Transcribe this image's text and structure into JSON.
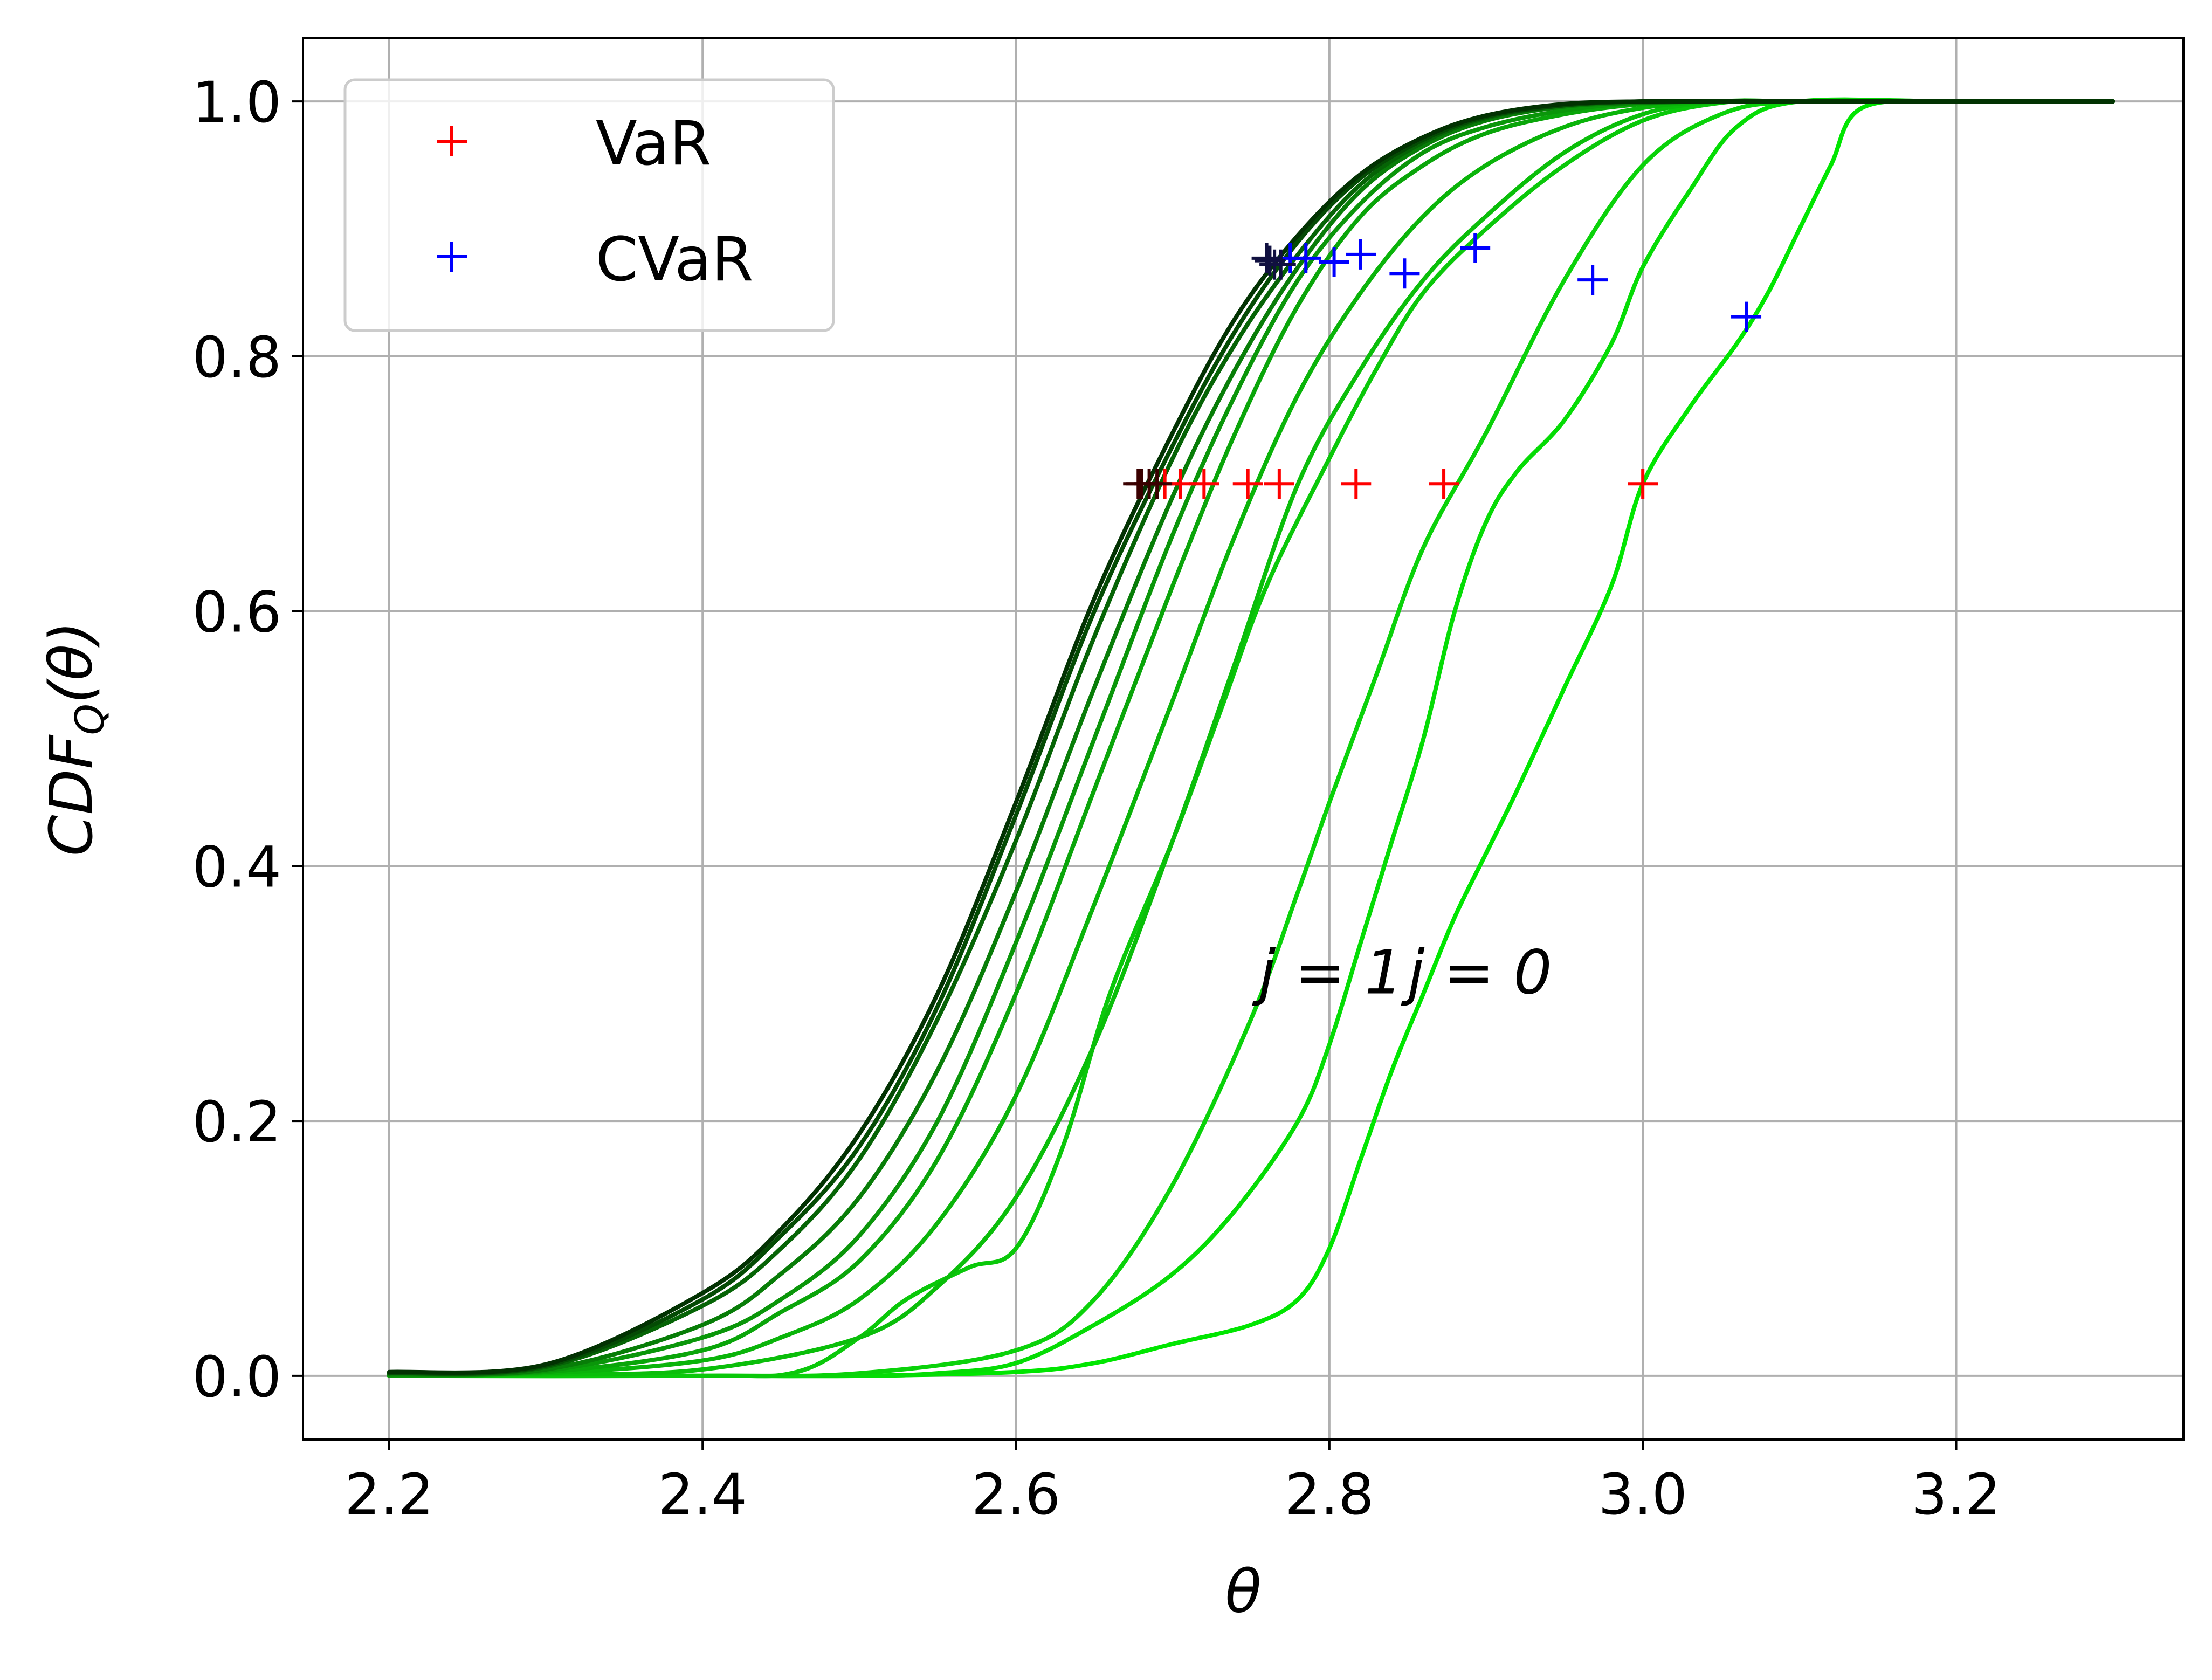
{
  "chart_data": {
    "type": "line",
    "xlabel": "θ",
    "ylabel": "CDF_Q(θ)",
    "ylabel_parts": [
      "CDF",
      "Q",
      "(θ)"
    ],
    "xlim": [
      2.145,
      3.345
    ],
    "ylim": [
      -0.05,
      1.05
    ],
    "x_ticks": [
      2.2,
      2.4,
      2.6,
      2.8,
      3.0,
      3.2
    ],
    "x_tick_labels": [
      "2.2",
      "2.4",
      "2.6",
      "2.8",
      "3.0",
      "3.2"
    ],
    "y_ticks": [
      0.0,
      0.2,
      0.4,
      0.6,
      0.8,
      1.0
    ],
    "y_tick_labels": [
      "0.0",
      "0.2",
      "0.4",
      "0.6",
      "0.8",
      "1.0"
    ],
    "grid": true,
    "legend_position": "top-left",
    "legend": [
      {
        "label": "VaR",
        "marker": "+",
        "color": "#ff0000"
      },
      {
        "label": "CVaR",
        "marker": "+",
        "color": "#0000ff"
      }
    ],
    "annotations": [
      {
        "text": "j = 1",
        "x": 2.755,
        "y": 0.3
      },
      {
        "text": "j = 0",
        "x": 2.85,
        "y": 0.3
      }
    ],
    "series": [
      {
        "color": "#00e600",
        "x": [
          2.2,
          2.4,
          2.5,
          2.6,
          2.65,
          2.7,
          2.75,
          2.78,
          2.8,
          2.82,
          2.84,
          2.86,
          2.88,
          2.9,
          2.92,
          2.95,
          2.98,
          3.0,
          3.03,
          3.06,
          3.08,
          3.1,
          3.12,
          3.14,
          3.2,
          3.3
        ],
        "y": [
          0,
          0,
          0,
          0.003,
          0.01,
          0.025,
          0.04,
          0.06,
          0.1,
          0.17,
          0.24,
          0.3,
          0.36,
          0.41,
          0.46,
          0.54,
          0.62,
          0.7,
          0.76,
          0.81,
          0.85,
          0.9,
          0.95,
          0.995,
          1,
          1
        ]
      },
      {
        "color": "#05dc05",
        "x": [
          2.2,
          2.4,
          2.5,
          2.55,
          2.6,
          2.65,
          2.7,
          2.74,
          2.78,
          2.8,
          2.82,
          2.84,
          2.86,
          2.88,
          2.9,
          2.92,
          2.95,
          2.98,
          3.0,
          3.03,
          3.06,
          3.1,
          3.2,
          3.3
        ],
        "y": [
          0,
          0,
          0,
          0.002,
          0.01,
          0.04,
          0.08,
          0.13,
          0.2,
          0.26,
          0.34,
          0.42,
          0.5,
          0.6,
          0.67,
          0.71,
          0.75,
          0.81,
          0.87,
          0.93,
          0.98,
          1.0,
          1,
          1
        ]
      },
      {
        "color": "#0ad20a",
        "x": [
          2.2,
          2.4,
          2.5,
          2.6,
          2.65,
          2.7,
          2.75,
          2.78,
          2.8,
          2.83,
          2.86,
          2.9,
          2.95,
          3.0,
          3.05,
          3.1,
          3.2,
          3.3
        ],
        "y": [
          0,
          0,
          0.002,
          0.02,
          0.06,
          0.15,
          0.28,
          0.38,
          0.45,
          0.55,
          0.65,
          0.74,
          0.86,
          0.95,
          0.99,
          1.0,
          1,
          1
        ]
      },
      {
        "color": "#0ac80a",
        "x": [
          2.2,
          2.4,
          2.46,
          2.5,
          2.53,
          2.57,
          2.6,
          2.63,
          2.66,
          2.7,
          2.73,
          2.76,
          2.8,
          2.83,
          2.86,
          2.9,
          2.95,
          3.0,
          3.05,
          3.1,
          3.2,
          3.3
        ],
        "y": [
          0,
          0,
          0.003,
          0.03,
          0.06,
          0.085,
          0.1,
          0.18,
          0.3,
          0.42,
          0.52,
          0.62,
          0.72,
          0.79,
          0.85,
          0.9,
          0.95,
          0.985,
          0.999,
          1.0,
          1,
          1
        ]
      },
      {
        "color": "#0abe0a",
        "x": [
          2.2,
          2.3,
          2.4,
          2.5,
          2.55,
          2.6,
          2.65,
          2.7,
          2.74,
          2.78,
          2.82,
          2.86,
          2.9,
          2.95,
          3.0,
          3.05,
          3.1,
          3.2,
          3.3
        ],
        "y": [
          0,
          0.001,
          0.005,
          0.03,
          0.07,
          0.14,
          0.26,
          0.42,
          0.56,
          0.7,
          0.79,
          0.86,
          0.91,
          0.96,
          0.99,
          1.0,
          1.0,
          1,
          1
        ]
      },
      {
        "color": "#0ab40a",
        "x": [
          2.2,
          2.3,
          2.4,
          2.45,
          2.5,
          2.55,
          2.6,
          2.65,
          2.7,
          2.74,
          2.78,
          2.82,
          2.86,
          2.9,
          2.95,
          3.0,
          3.05,
          3.1,
          3.2,
          3.3
        ],
        "y": [
          0,
          0.002,
          0.012,
          0.03,
          0.06,
          0.12,
          0.22,
          0.37,
          0.53,
          0.66,
          0.77,
          0.85,
          0.91,
          0.95,
          0.98,
          0.995,
          1.0,
          1.0,
          1,
          1
        ]
      },
      {
        "color": "#0aa50a",
        "x": [
          2.2,
          2.3,
          2.4,
          2.45,
          2.5,
          2.55,
          2.6,
          2.65,
          2.7,
          2.74,
          2.78,
          2.82,
          2.86,
          2.9,
          2.95,
          3.0,
          3.05,
          3.1,
          3.2,
          3.3
        ],
        "y": [
          0,
          0.003,
          0.02,
          0.05,
          0.09,
          0.17,
          0.3,
          0.46,
          0.62,
          0.74,
          0.84,
          0.91,
          0.95,
          0.975,
          0.99,
          0.998,
          1.0,
          1.0,
          1,
          1
        ]
      },
      {
        "color": "#0a960a",
        "x": [
          2.2,
          2.3,
          2.4,
          2.45,
          2.5,
          2.55,
          2.6,
          2.65,
          2.7,
          2.74,
          2.78,
          2.82,
          2.86,
          2.9,
          2.95,
          3.0,
          3.05,
          3.1,
          3.2,
          3.3
        ],
        "y": [
          0,
          0.004,
          0.03,
          0.06,
          0.11,
          0.2,
          0.34,
          0.5,
          0.66,
          0.77,
          0.86,
          0.92,
          0.96,
          0.98,
          0.993,
          0.999,
          1.0,
          1.0,
          1,
          1
        ]
      },
      {
        "color": "#087d08",
        "x": [
          2.2,
          2.3,
          2.4,
          2.45,
          2.5,
          2.55,
          2.6,
          2.65,
          2.7,
          2.74,
          2.78,
          2.82,
          2.86,
          2.9,
          2.95,
          3.0,
          3.05,
          3.1,
          3.2,
          3.3
        ],
        "y": [
          0.001,
          0.005,
          0.04,
          0.08,
          0.14,
          0.24,
          0.38,
          0.54,
          0.69,
          0.79,
          0.87,
          0.93,
          0.965,
          0.985,
          0.996,
          0.999,
          1.0,
          1.0,
          1,
          1
        ]
      },
      {
        "color": "#066406",
        "x": [
          2.2,
          2.3,
          2.4,
          2.45,
          2.5,
          2.55,
          2.6,
          2.65,
          2.7,
          2.74,
          2.78,
          2.82,
          2.86,
          2.9,
          2.95,
          3.0,
          3.05,
          3.1,
          3.2,
          3.3
        ],
        "y": [
          0.002,
          0.007,
          0.055,
          0.1,
          0.17,
          0.28,
          0.42,
          0.58,
          0.72,
          0.81,
          0.88,
          0.935,
          0.968,
          0.987,
          0.997,
          1.0,
          1.0,
          1.0,
          1,
          1
        ]
      },
      {
        "color": "#044b04",
        "x": [
          2.2,
          2.3,
          2.4,
          2.45,
          2.5,
          2.55,
          2.6,
          2.65,
          2.7,
          2.74,
          2.78,
          2.82,
          2.86,
          2.9,
          2.95,
          3.0,
          3.05,
          3.1,
          3.2,
          3.3
        ],
        "y": [
          0.002,
          0.008,
          0.06,
          0.11,
          0.18,
          0.29,
          0.44,
          0.6,
          0.73,
          0.82,
          0.89,
          0.94,
          0.97,
          0.988,
          0.997,
          1.0,
          1.0,
          1.0,
          1,
          1
        ]
      },
      {
        "color": "#023202",
        "x": [
          2.2,
          2.3,
          2.4,
          2.45,
          2.5,
          2.55,
          2.6,
          2.65,
          2.7,
          2.74,
          2.78,
          2.82,
          2.86,
          2.9,
          2.95,
          3.0,
          3.05,
          3.1,
          3.2,
          3.3
        ],
        "y": [
          0.003,
          0.009,
          0.065,
          0.115,
          0.19,
          0.3,
          0.45,
          0.61,
          0.74,
          0.83,
          0.895,
          0.943,
          0.972,
          0.989,
          0.998,
          1.0,
          1.0,
          1.0,
          1,
          1
        ]
      }
    ],
    "var_points": {
      "marker": "+",
      "color": "#ff0000",
      "dark_color": "#3a0000",
      "x": [
        3.0,
        2.873,
        2.817,
        2.768,
        2.748,
        2.72,
        2.705,
        2.695,
        2.69,
        2.685,
        2.68,
        2.678
      ],
      "y": [
        0.7,
        0.7,
        0.7,
        0.7,
        0.7,
        0.7,
        0.7,
        0.7,
        0.7,
        0.7,
        0.7,
        0.7
      ]
    },
    "cvar_points": {
      "marker": "+",
      "color": "#0000ff",
      "dark_color": "#101040",
      "x": [
        3.066,
        2.968,
        2.893,
        2.848,
        2.82,
        2.803,
        2.785,
        2.775,
        2.769,
        2.765,
        2.762,
        2.76
      ],
      "y": [
        0.831,
        0.86,
        0.885,
        0.865,
        0.88,
        0.874,
        0.877,
        0.877,
        0.872,
        0.872,
        0.875,
        0.877
      ]
    }
  }
}
